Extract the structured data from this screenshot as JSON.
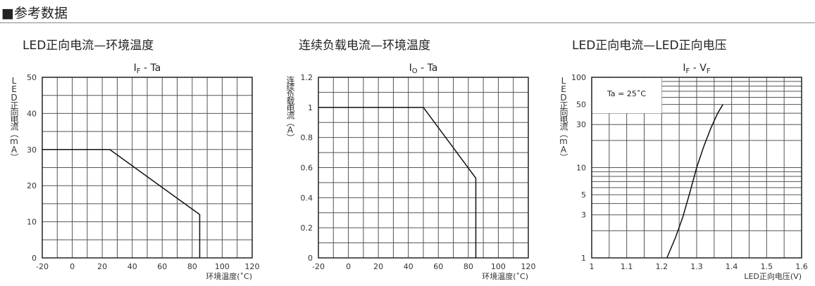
{
  "header": {
    "title": "■参考数据"
  },
  "chart_data": [
    {
      "type": "line",
      "subtitle": "LED正向电流—环境温度",
      "title": {
        "main": "I",
        "sub": "F",
        "rest": " - Ta"
      },
      "ylabel": "LED正向电流（mA）",
      "xlabel": "环境温度(˚C)",
      "xlim": [
        -20,
        120
      ],
      "ylim": [
        0,
        50
      ],
      "xticks": [
        -20,
        0,
        20,
        40,
        60,
        80,
        100,
        120
      ],
      "yticks": [
        0,
        10,
        20,
        30,
        40,
        50
      ],
      "xgrid_step": 10,
      "ygrid_step": 5,
      "grid": true,
      "series": [
        {
          "x": [
            -20,
            25,
            85,
            85
          ],
          "y": [
            30,
            30,
            12,
            0
          ]
        }
      ]
    },
    {
      "type": "line",
      "subtitle": "连续负载电流—环境温度",
      "title": {
        "main": "I",
        "sub": "O",
        "rest": " - Ta"
      },
      "ylabel": "连续负载电流（A）",
      "xlabel": "环境温度(˚C)",
      "xlim": [
        -20,
        120
      ],
      "ylim": [
        0,
        1.2
      ],
      "xticks": [
        -20,
        0,
        20,
        40,
        60,
        80,
        100,
        120
      ],
      "yticks": [
        0,
        0.2,
        0.4,
        0.6,
        0.8,
        1,
        1.2
      ],
      "xgrid_step": 10,
      "ygrid_step": 0.1,
      "grid": true,
      "series": [
        {
          "x": [
            -20,
            50,
            85,
            85
          ],
          "y": [
            1,
            1,
            0.53,
            0
          ]
        }
      ]
    },
    {
      "type": "line",
      "subtitle": "LED正向电流—LED正向电压",
      "title": {
        "main": "I",
        "sub": "F",
        "rest": " - V",
        "sub2": "F"
      },
      "ylabel": "LED正向电流（mA）",
      "xlabel": "LED正向电压(V)",
      "yscale": "log",
      "xlim": [
        1,
        1.6
      ],
      "ylim": [
        1,
        100
      ],
      "xticks": [
        1,
        1.1,
        1.2,
        1.3,
        1.4,
        1.5,
        1.6
      ],
      "yticks": [
        1,
        3,
        5,
        10,
        30,
        50,
        100
      ],
      "xgrid_step": 0.05,
      "grid": true,
      "annotation": "Ta = 25˚C",
      "series": [
        {
          "x": [
            1.215,
            1.24,
            1.26,
            1.28,
            1.3,
            1.32,
            1.34,
            1.36,
            1.375
          ],
          "y": [
            1,
            1.7,
            2.8,
            5.2,
            10,
            17,
            27,
            40,
            50
          ]
        }
      ]
    }
  ]
}
